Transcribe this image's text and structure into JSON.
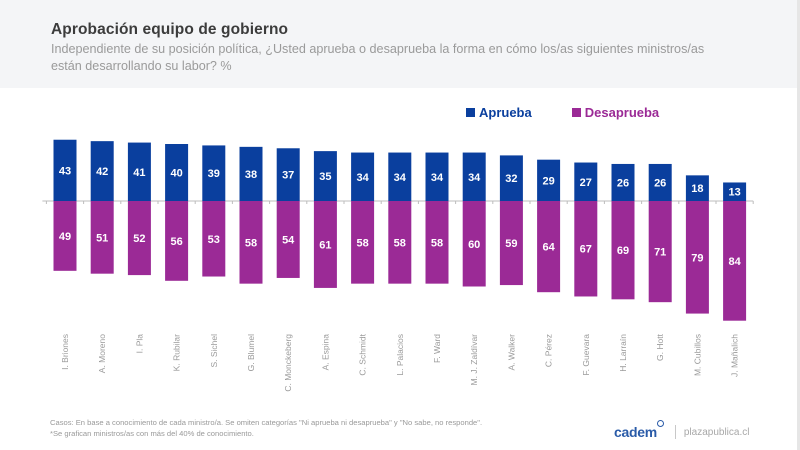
{
  "header": {
    "title": "Aprobación equipo de gobierno",
    "subtitle": "Independiente de su posición política, ¿Usted aprueba o desaprueba la forma en cómo los/as siguientes ministros/as están desarrollando su labor? %"
  },
  "legend": [
    {
      "label": "Aprueba",
      "color": "#0a3f9e"
    },
    {
      "label": "Desaprueba",
      "color": "#9b2a96"
    }
  ],
  "chart_data": {
    "type": "bar",
    "title": "Aprobación equipo de gobierno",
    "xlabel": "",
    "ylabel": "%",
    "categories": [
      "I. Briones",
      "A. Moreno",
      "I. Pla",
      "K. Rubilar",
      "S. Sichel",
      "G. Blumel",
      "C. Monckeberg",
      "A. Espina",
      "C. Schmidt",
      "L. Palacios",
      "F. Ward",
      "M. J. Zaldívar",
      "A. Walker",
      "C. Pérez",
      "F. Guevara",
      "H. Larraín",
      "G. Hott",
      "M. Cubillos",
      "J. Mañalich"
    ],
    "series": [
      {
        "name": "Aprueba",
        "color": "#0a3f9e",
        "direction": "up",
        "values": [
          43,
          42,
          41,
          40,
          39,
          38,
          37,
          35,
          34,
          34,
          34,
          34,
          32,
          29,
          27,
          26,
          26,
          18,
          13
        ]
      },
      {
        "name": "Desaprueba",
        "color": "#9b2a96",
        "direction": "down",
        "values": [
          49,
          51,
          52,
          56,
          53,
          58,
          54,
          61,
          58,
          58,
          58,
          60,
          59,
          64,
          67,
          69,
          71,
          79,
          84
        ]
      }
    ],
    "legend_position": "top-right",
    "grid": false,
    "data_labels": true
  },
  "footnote": {
    "line1": "Casos: En base a conocimiento de cada ministro/a. Se omiten categorías \"Ni aprueba ni desaprueba\" y \"No sabe, no responde\".",
    "line2": "*Se grafican ministros/as con más del 40% de conocimiento."
  },
  "brand": {
    "logo": "cadem",
    "site": "plazapublica.cl"
  }
}
